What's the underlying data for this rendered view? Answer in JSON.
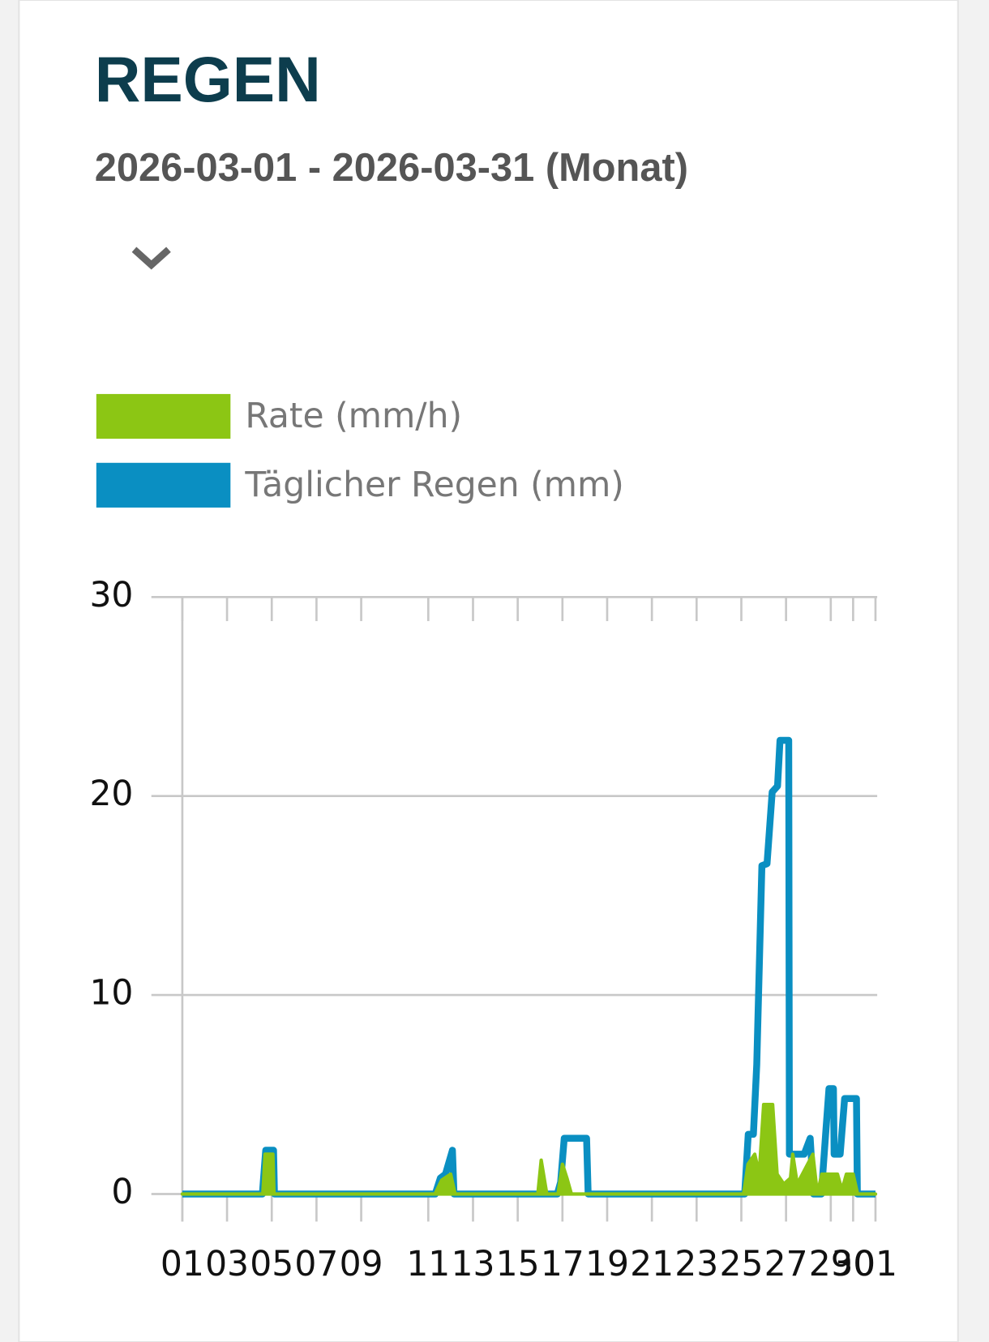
{
  "chart_data": {
    "type": "line",
    "title": "REGEN",
    "subtitle": "2026-03-01 - 2026-03-31 (Monat)",
    "xlim": [
      0,
      31
    ],
    "xticks": [
      {
        "value": 0,
        "label": "01"
      },
      {
        "value": 2,
        "label": "03"
      },
      {
        "value": 4,
        "label": "05"
      },
      {
        "value": 6,
        "label": "07"
      },
      {
        "value": 8,
        "label": "09"
      },
      11,
      13,
      15,
      17,
      19,
      21,
      23,
      25,
      27,
      29,
      30,
      {
        "value": 31,
        "label": "01"
      }
    ],
    "ylim": [
      0,
      30
    ],
    "yticks": [
      0,
      10,
      20,
      30
    ],
    "grid": true,
    "legend": "top-left",
    "series": [
      {
        "name": "Rate (mm/h)",
        "color": "#8cc614",
        "fill": true,
        "x": [
          0,
          3.6,
          3.7,
          4.05,
          4.1,
          11.3,
          11.6,
          12,
          12.2,
          15.9,
          16.05,
          16.3,
          16.8,
          17.0,
          17.2,
          17.4,
          25.1,
          25.3,
          25.6,
          25.8,
          26.0,
          26.4,
          26.6,
          26.9,
          27.2,
          27.3,
          27.5,
          28.2,
          28.4,
          28.6,
          29.3,
          29.5,
          29.7,
          30.0,
          30.2,
          31
        ],
        "values": [
          0,
          0,
          2,
          2,
          0,
          0,
          0.7,
          1,
          0,
          0,
          1.7,
          0,
          0,
          1.5,
          0.8,
          0,
          0,
          1.5,
          2,
          1,
          4.5,
          4.5,
          1,
          0.5,
          0.8,
          2,
          0.5,
          2,
          0,
          1,
          1,
          0.2,
          1,
          1,
          0,
          0
        ]
      },
      {
        "name": "Täglicher Regen (mm)",
        "color": "#0a8fc2",
        "fill": false,
        "x": [
          0,
          3.58,
          3.73,
          4.08,
          4.12,
          11.31,
          11.54,
          11.77,
          12.08,
          12.15,
          16.77,
          16.92,
          17.08,
          18.08,
          18.15,
          25.15,
          25.31,
          25.54,
          25.69,
          25.92,
          26.15,
          26.38,
          26.62,
          26.73,
          27.12,
          27.15,
          27.81,
          28.08,
          28.23,
          28.58,
          28.77,
          28.92,
          29.12,
          29.15,
          29.42,
          29.62,
          30.15,
          30.19,
          31
        ],
        "values": [
          0,
          0,
          2.2,
          2.2,
          0,
          0,
          0.8,
          1,
          2.2,
          0,
          0,
          0.6,
          2.8,
          2.8,
          0,
          0,
          3,
          3,
          6.5,
          16.5,
          16.6,
          20.2,
          20.5,
          22.8,
          22.8,
          2,
          2,
          2.8,
          0,
          0,
          3,
          5.3,
          5.3,
          2,
          2,
          4.8,
          4.8,
          0,
          0
        ]
      }
    ]
  }
}
